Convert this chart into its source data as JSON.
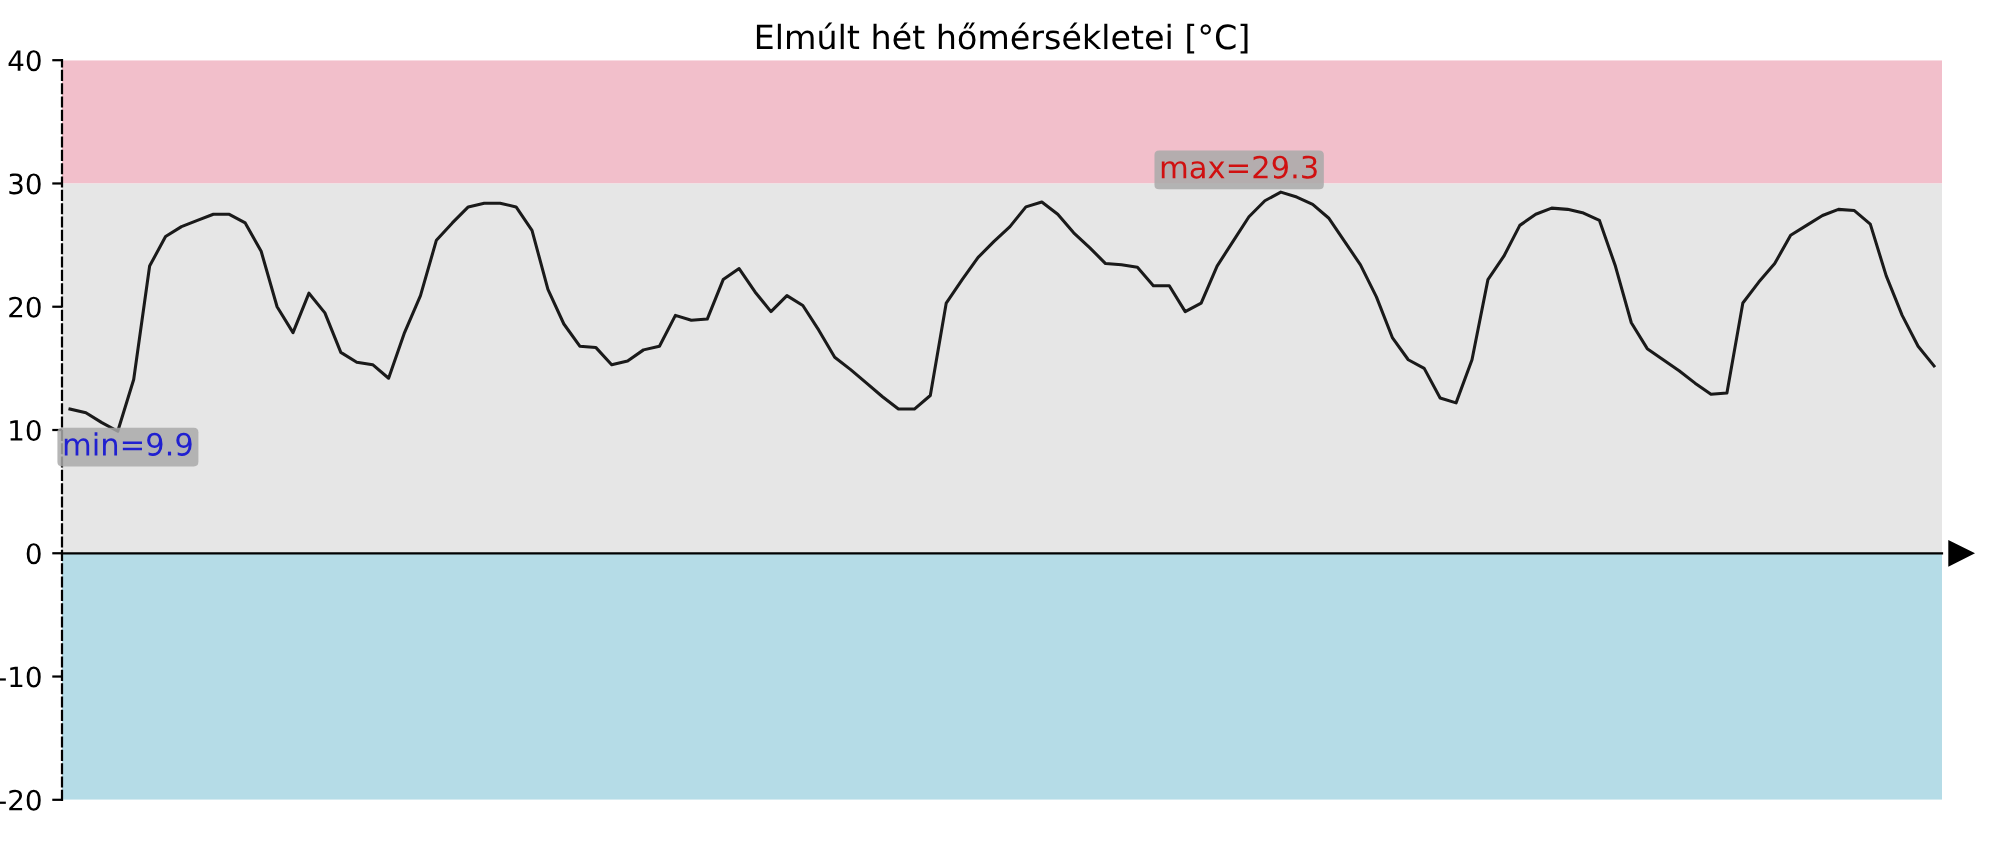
{
  "chart_data": {
    "type": "line",
    "title": "Elmúlt hét hőmérsékletei [°C]",
    "categories": [
      null,
      null,
      null,
      null,
      null,
      null,
      null,
      null,
      null,
      null,
      null,
      null,
      null,
      null,
      null,
      null,
      null,
      null,
      null,
      null,
      null,
      null,
      null,
      null,
      null,
      null,
      null,
      null,
      null,
      null,
      null,
      null,
      null,
      null,
      null,
      null,
      null,
      null,
      null,
      null,
      null,
      null,
      null,
      null,
      null,
      null,
      null,
      null,
      null,
      null,
      null,
      null,
      null,
      null,
      null,
      null,
      null,
      null,
      null,
      null,
      null,
      null,
      null,
      null,
      null,
      null,
      null,
      null,
      null,
      null,
      null,
      null,
      null,
      null,
      null,
      null,
      null,
      null,
      null,
      null,
      null,
      null,
      null,
      null,
      null,
      null,
      null,
      null,
      null,
      null,
      null,
      null,
      null,
      null,
      null,
      null,
      null,
      null,
      null,
      null,
      null,
      null,
      null,
      null,
      null,
      null,
      null,
      null,
      null,
      null,
      null,
      null,
      null,
      null,
      null,
      null,
      null,
      null
    ],
    "series": [
      {
        "color": "#1a1a1a",
        "values": [
          11.7,
          11.4,
          10.6,
          9.9,
          14.1,
          23.3,
          25.7,
          26.5,
          27,
          27.5,
          27.5,
          26.8,
          24.5,
          20,
          17.9,
          21.1,
          19.5,
          16.3,
          15.5,
          15.3,
          14.2,
          17.9,
          20.9,
          25.4,
          26.8,
          28.1,
          28.4,
          28.4,
          28.1,
          26.2,
          21.4,
          18.6,
          16.8,
          16.7,
          15.3,
          15.6,
          16.5,
          16.8,
          19.3,
          18.9,
          19,
          22.2,
          23.1,
          21.2,
          19.6,
          20.9,
          20.1,
          18.1,
          15.9,
          14.9,
          13.8,
          12.7,
          11.7,
          11.7,
          12.8,
          20.3,
          22.2,
          24,
          25.3,
          26.5,
          28.1,
          28.5,
          27.5,
          26,
          24.8,
          23.5,
          23.4,
          23.2,
          21.7,
          21.7,
          19.6,
          20.3,
          23.3,
          25.3,
          27.3,
          28.6,
          29.3,
          28.9,
          28.3,
          27.2,
          25.3,
          23.4,
          20.8,
          17.5,
          15.7,
          15,
          12.6,
          12.2,
          15.7,
          22.2,
          24.1,
          26.6,
          27.5,
          28,
          27.9,
          27.6,
          27,
          23.3,
          18.7,
          16.6,
          15.7,
          14.8,
          13.8,
          12.9,
          13,
          20.3,
          22,
          23.5,
          25.8,
          26.6,
          27.4,
          27.9,
          27.8,
          26.7,
          22.5,
          19.3,
          16.8,
          15.2
        ]
      }
    ],
    "ylim": [
      -20,
      40
    ],
    "yticks": [
      -20,
      -10,
      0,
      10,
      20,
      30,
      40
    ],
    "bands": [
      {
        "axis": "y",
        "from": 30,
        "to": 40,
        "color": "#f2bfcb"
      },
      {
        "axis": "y",
        "from": 0,
        "to": 30,
        "color": "#e6e6e6"
      },
      {
        "axis": "y",
        "from": -20,
        "to": 0,
        "color": "#b5dce7"
      }
    ],
    "annotations": [
      {
        "text": "max=29.3",
        "y": 29.3
      },
      "min=9.9"
    ],
    "tick_labels": "y",
    "marker": "none",
    "line_style": "solid"
  }
}
